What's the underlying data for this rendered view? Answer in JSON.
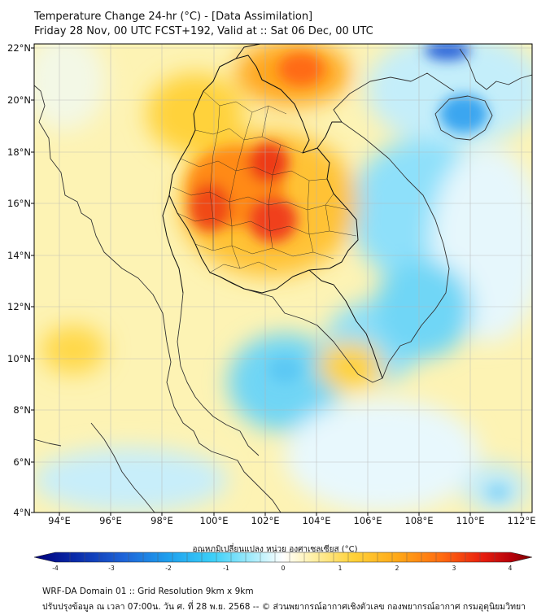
{
  "title": {
    "line1": "Temperature Change 24-hr (°C) - [Data Assimilation]",
    "line2": "Friday 28 Nov, 00 UTC FCST+192, Valid at :: Sat 06 Dec, 00 UTC"
  },
  "axes": {
    "lat_labels": [
      "22°N",
      "20°N",
      "18°N",
      "16°N",
      "14°N",
      "12°N",
      "10°N",
      "8°N",
      "6°N",
      "4°N"
    ],
    "lon_labels": [
      "94°E",
      "96°E",
      "98°E",
      "100°E",
      "102°E",
      "104°E",
      "106°E",
      "108°E",
      "110°E",
      "112°E"
    ]
  },
  "colorbar": {
    "title": "อุณหภูมิเปลี่ยนแปลง หน่วย องศาเซลเซียส (°C)",
    "range": [
      -4,
      4
    ],
    "tick_labels": [
      "-4",
      "-3",
      "-2",
      "-1",
      "0",
      "1",
      "2",
      "3",
      "4"
    ],
    "colors": [
      "#00007a",
      "#0a2aa8",
      "#1e64d8",
      "#1ea0ee",
      "#3cd0f8",
      "#a8ecfb",
      "#ffffff",
      "#fff0a8",
      "#ffd23a",
      "#ffa818",
      "#ff6a10",
      "#e81e0e",
      "#b4000a",
      "#780000"
    ]
  },
  "footer": {
    "line1": "WRF-DA Domain 01 :: Grid Resolution 9km x 9km",
    "line2": "ปรับปรุงข้อมูล ณ เวลา 07:00น. วัน ศ. ที่ 28 พ.ย. 2568 -- © ส่วนพยากรณ์อากาศเชิงตัวเลข กองพยากรณ์อากาศ กรมอุตุนิยมวิทยา"
  }
}
